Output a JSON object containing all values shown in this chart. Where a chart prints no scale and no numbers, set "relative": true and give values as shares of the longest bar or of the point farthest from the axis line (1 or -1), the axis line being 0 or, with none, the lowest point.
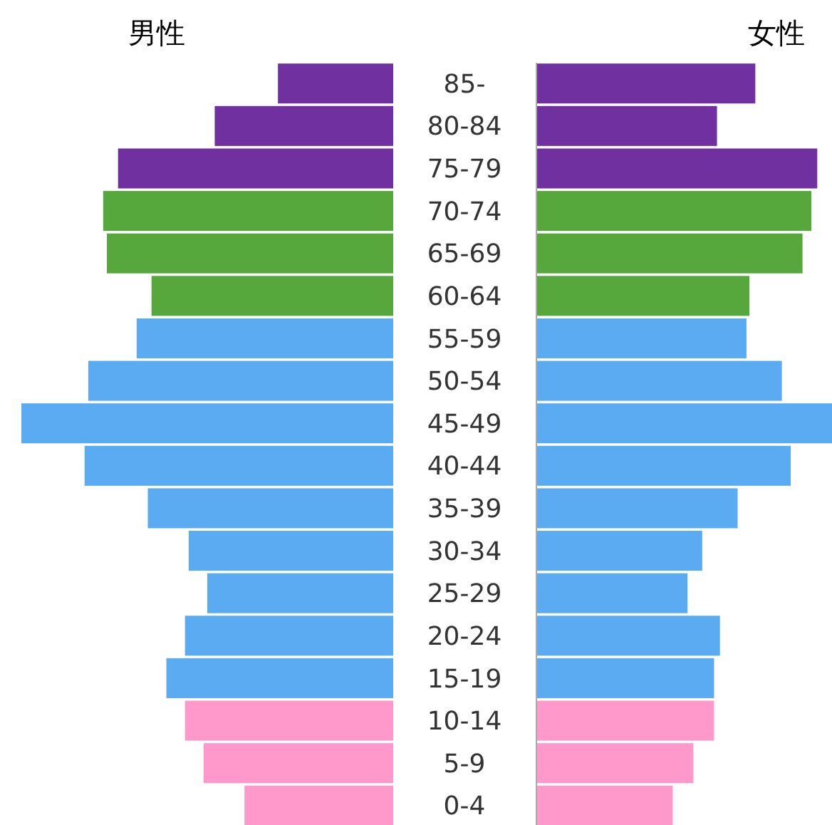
{
  "chart_data": [
    {
      "type": "bar",
      "orientation": "horizontal",
      "relative": true,
      "title": "男性",
      "categories": [
        "85-",
        "80-84",
        "75-79",
        "70-74",
        "65-69",
        "60-64",
        "55-59",
        "50-54",
        "45-49",
        "40-44",
        "35-39",
        "30-34",
        "25-29",
        "20-24",
        "15-19",
        "10-14",
        "5-9",
        "0-4"
      ],
      "series": [
        {
          "colors": [
            "#7030a0",
            "#7030a0",
            "#7030a0",
            "#56a83c",
            "#56a83c",
            "#56a83c",
            "#5aabf2",
            "#5aabf2",
            "#5aabf2",
            "#5aabf2",
            "#5aabf2",
            "#5aabf2",
            "#5aabf2",
            "#5aabf2",
            "#5aabf2",
            "#ff99cc",
            "#ff99cc",
            "#ff99cc"
          ],
          "values": [
            -0.31,
            -0.48,
            -0.74,
            -0.78,
            -0.77,
            -0.65,
            -0.69,
            -0.82,
            -1,
            -0.83,
            -0.66,
            -0.55,
            -0.5,
            -0.56,
            -0.61,
            -0.56,
            -0.51,
            -0.4
          ]
        }
      ]
    },
    {
      "type": "bar",
      "orientation": "horizontal",
      "relative": true,
      "title": "女性",
      "categories": [
        null,
        null,
        null,
        null,
        null,
        null,
        null,
        null,
        null,
        null,
        null,
        null,
        null,
        null,
        null,
        null,
        null,
        null
      ],
      "series": [
        {
          "colors": [
            "#7030a0",
            "#7030a0",
            "#7030a0",
            "#56a83c",
            "#56a83c",
            "#56a83c",
            "#5aabf2",
            "#5aabf2",
            "#5aabf2",
            "#5aabf2",
            "#5aabf2",
            "#5aabf2",
            "#5aabf2",
            "#5aabf2",
            "#5aabf2",
            "#ff99cc",
            "#ff99cc",
            "#ff99cc"
          ],
          "values": [
            0.74,
            0.61,
            0.95,
            0.93,
            0.9,
            0.72,
            0.71,
            0.83,
            1,
            0.86,
            0.68,
            0.56,
            0.51,
            0.62,
            0.6,
            0.6,
            0.53,
            0.46
          ]
        }
      ]
    }
  ]
}
